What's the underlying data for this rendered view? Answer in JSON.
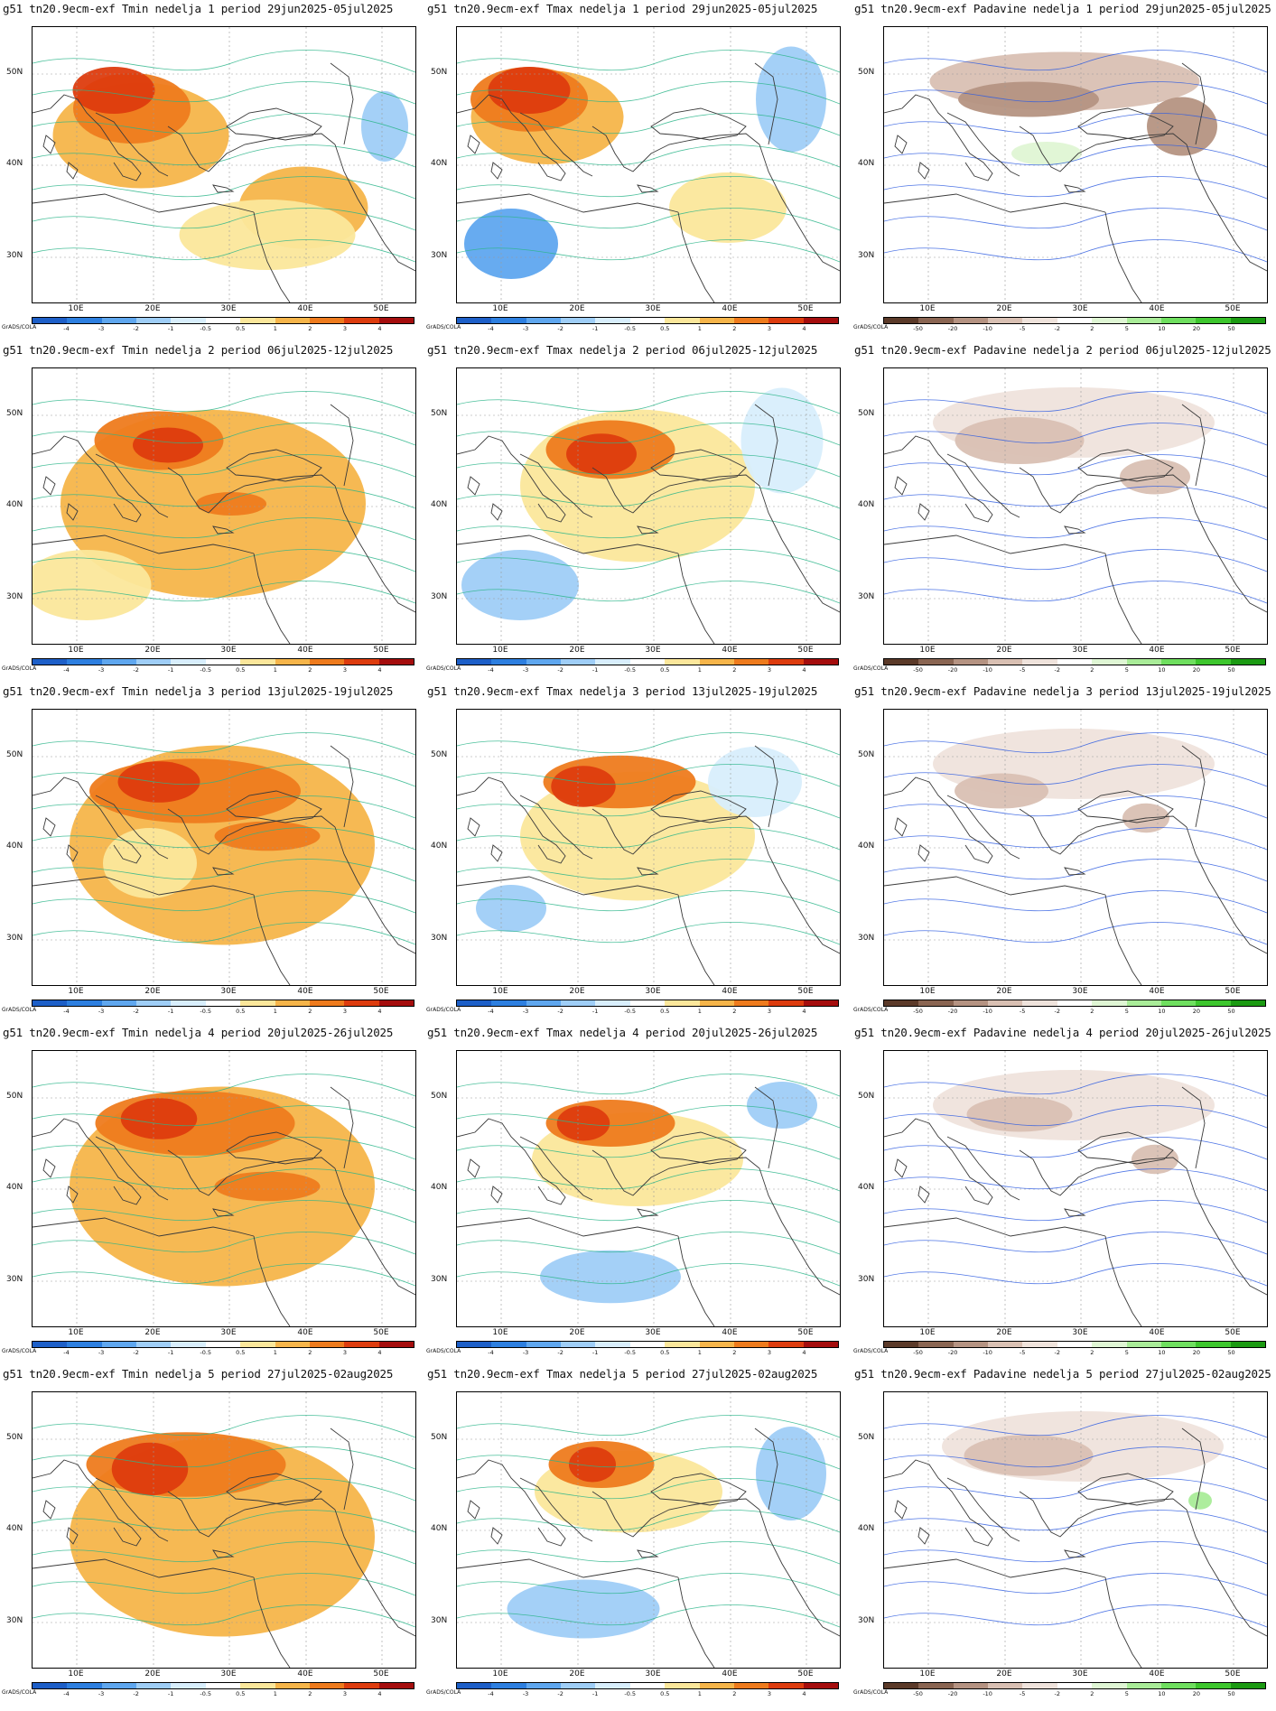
{
  "scale": {
    "temp_labels": [
      "-4",
      "-3",
      "-2",
      "-1",
      "-0.5",
      "0.5",
      "1",
      "2",
      "3",
      "4"
    ],
    "temp_colors": [
      "#1d5fc8",
      "#2d7fe0",
      "#5fa7ef",
      "#9fcef7",
      "#d8eefc",
      "#ffffff",
      "#fbe79b",
      "#f6b54a",
      "#ee7b1d",
      "#dd3c0e",
      "#a50d0d"
    ],
    "precip_labels": [
      "-50",
      "-20",
      "-10",
      "-5",
      "-2",
      "2",
      "5",
      "10",
      "20",
      "50"
    ],
    "precip_colors": [
      "#5b3a29",
      "#8a6552",
      "#b59382",
      "#d9c0b3",
      "#efe3dc",
      "#ffffff",
      "#dff6d4",
      "#a9ec98",
      "#6fdf5f",
      "#3dc62d",
      "#1b9a12"
    ],
    "credit": "GrADS/COLA"
  },
  "axes": {
    "lat": [
      "50N",
      "40N",
      "30N"
    ],
    "lon": [
      "10E",
      "20E",
      "30E",
      "40E",
      "50E"
    ]
  },
  "rows": [
    {
      "week": "1",
      "panels": [
        {
          "title": "g51 tn20.9ecm-exf Tmin nedelja 1 period 29jun2025-05jul2025",
          "kind": "temp",
          "variant": "tmin1"
        },
        {
          "title": "g51 tn20.9ecm-exf Tmax nedelja 1 period 29jun2025-05jul2025",
          "kind": "temp",
          "variant": "tmax1"
        },
        {
          "title": "g51 tn20.9ecm-exf Padavine nedelja 1 period 29jun2025-05jul2025",
          "kind": "precip",
          "variant": "pr1"
        }
      ]
    },
    {
      "week": "2",
      "panels": [
        {
          "title": "g51 tn20.9ecm-exf Tmin nedelja 2 period 06jul2025-12jul2025",
          "kind": "temp",
          "variant": "tmin2"
        },
        {
          "title": "g51 tn20.9ecm-exf Tmax nedelja 2 period 06jul2025-12jul2025",
          "kind": "temp",
          "variant": "tmax2"
        },
        {
          "title": "g51 tn20.9ecm-exf Padavine nedelja 2 period 06jul2025-12jul2025",
          "kind": "precip",
          "variant": "pr2"
        }
      ]
    },
    {
      "week": "3",
      "panels": [
        {
          "title": "g51 tn20.9ecm-exf Tmin nedelja 3 period 13jul2025-19jul2025",
          "kind": "temp",
          "variant": "tmin3"
        },
        {
          "title": "g51 tn20.9ecm-exf Tmax nedelja 3 period 13jul2025-19jul2025",
          "kind": "temp",
          "variant": "tmax3"
        },
        {
          "title": "g51 tn20.9ecm-exf Padavine nedelja 3 period 13jul2025-19jul2025",
          "kind": "precip",
          "variant": "pr3"
        }
      ]
    },
    {
      "week": "4",
      "panels": [
        {
          "title": "g51 tn20.9ecm-exf Tmin nedelja 4 period 20jul2025-26jul2025",
          "kind": "temp",
          "variant": "tmin4"
        },
        {
          "title": "g51 tn20.9ecm-exf Tmax nedelja 4 period 20jul2025-26jul2025",
          "kind": "temp",
          "variant": "tmax4"
        },
        {
          "title": "g51 tn20.9ecm-exf Padavine nedelja 4 period 20jul2025-26jul2025",
          "kind": "precip",
          "variant": "pr4"
        }
      ]
    },
    {
      "week": "5",
      "panels": [
        {
          "title": "g51 tn20.9ecm-exf Tmin nedelja 5 period 27jul2025-02aug2025",
          "kind": "temp",
          "variant": "tmin5"
        },
        {
          "title": "g51 tn20.9ecm-exf Tmax nedelja 5 period 27jul2025-02aug2025",
          "kind": "temp",
          "variant": "tmax5"
        },
        {
          "title": "g51 tn20.9ecm-exf Padavine nedelja 5 period 27jul2025-02aug2025",
          "kind": "precip",
          "variant": "pr5"
        }
      ]
    }
  ]
}
